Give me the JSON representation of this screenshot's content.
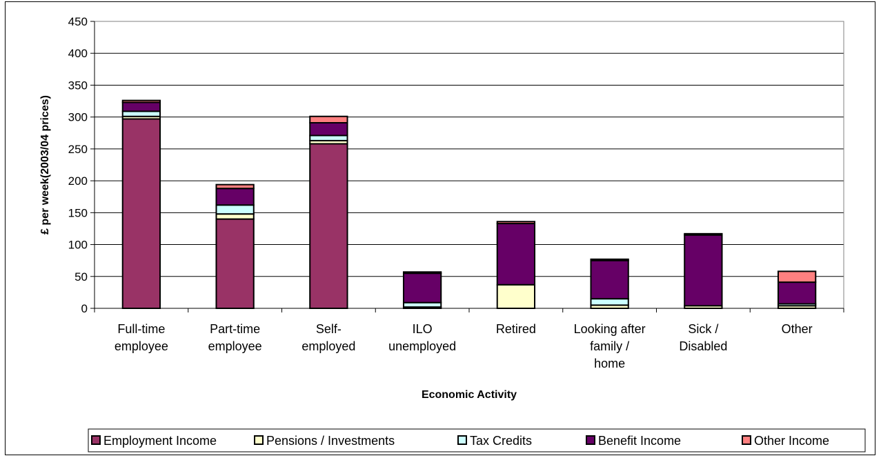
{
  "chart_data": {
    "type": "bar",
    "stacked": true,
    "xlabel": "Economic Activity",
    "ylabel": "£ per week(2003/04 prices)",
    "ylim": [
      0,
      450
    ],
    "yticks": [
      0,
      50,
      100,
      150,
      200,
      250,
      300,
      350,
      400,
      450
    ],
    "grid": true,
    "legend_position": "bottom",
    "categories": [
      [
        "Full-time",
        "employee"
      ],
      [
        "Part-time",
        "employee"
      ],
      [
        "Self-",
        "employed"
      ],
      [
        "ILO",
        "unemployed"
      ],
      [
        "Retired"
      ],
      [
        "Looking after",
        "family /",
        "home"
      ],
      [
        "Sick /",
        "Disabled"
      ],
      [
        "Other"
      ]
    ],
    "series": [
      {
        "name": "Employment Income",
        "color": "#993366",
        "values": [
          297,
          140,
          258,
          0,
          0,
          0,
          0,
          0
        ]
      },
      {
        "name": "Pensions / Investments",
        "color": "#FFFFCC",
        "values": [
          4,
          8,
          5,
          2,
          37,
          5,
          4,
          4
        ]
      },
      {
        "name": "Tax Credits",
        "color": "#CCFFFF",
        "values": [
          8,
          14,
          8,
          7,
          0,
          10,
          0,
          3
        ]
      },
      {
        "name": "Benefit Income",
        "color": "#660066",
        "values": [
          14,
          26,
          20,
          46,
          96,
          60,
          111,
          34
        ]
      },
      {
        "name": "Other Income",
        "color": "#FF8080",
        "values": [
          3,
          6,
          10,
          2,
          3,
          2,
          2,
          17
        ]
      }
    ]
  }
}
